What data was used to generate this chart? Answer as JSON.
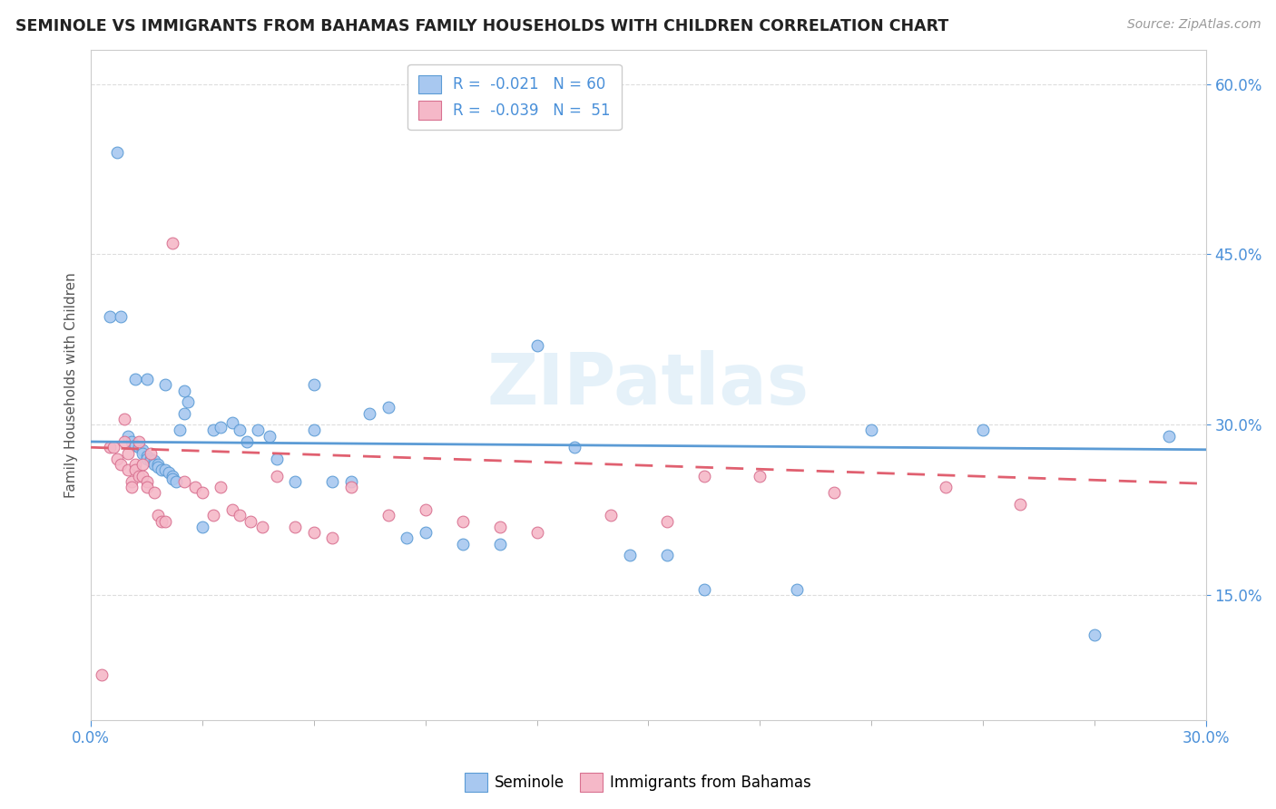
{
  "title": "SEMINOLE VS IMMIGRANTS FROM BAHAMAS FAMILY HOUSEHOLDS WITH CHILDREN CORRELATION CHART",
  "source": "Source: ZipAtlas.com",
  "x_min": 0.0,
  "x_max": 0.3,
  "y_min": 0.04,
  "y_max": 0.63,
  "R_seminole": -0.021,
  "N_seminole": 60,
  "R_bahamas": -0.039,
  "N_bahamas": 51,
  "color_seminole": "#a8c8f0",
  "color_bahamas": "#f5b8c8",
  "color_seminole_line": "#5b9bd5",
  "color_bahamas_line": "#e06070",
  "watermark_text": "ZIPatlas",
  "seminole_x": [
    0.005,
    0.008,
    0.01,
    0.011,
    0.012,
    0.013,
    0.014,
    0.014,
    0.015,
    0.015,
    0.016,
    0.016,
    0.017,
    0.017,
    0.018,
    0.018,
    0.019,
    0.02,
    0.021,
    0.022,
    0.022,
    0.023,
    0.024,
    0.025,
    0.026,
    0.03,
    0.033,
    0.035,
    0.038,
    0.04,
    0.042,
    0.045,
    0.048,
    0.05,
    0.055,
    0.06,
    0.065,
    0.07,
    0.075,
    0.08,
    0.085,
    0.09,
    0.1,
    0.11,
    0.12,
    0.13,
    0.145,
    0.155,
    0.165,
    0.19,
    0.21,
    0.24,
    0.27,
    0.29,
    0.007,
    0.012,
    0.015,
    0.02,
    0.025,
    0.06
  ],
  "seminole_y": [
    0.395,
    0.395,
    0.29,
    0.285,
    0.282,
    0.28,
    0.278,
    0.275,
    0.272,
    0.27,
    0.27,
    0.268,
    0.268,
    0.265,
    0.265,
    0.263,
    0.26,
    0.26,
    0.258,
    0.255,
    0.252,
    0.25,
    0.295,
    0.31,
    0.32,
    0.21,
    0.295,
    0.298,
    0.302,
    0.295,
    0.285,
    0.295,
    0.29,
    0.27,
    0.25,
    0.295,
    0.25,
    0.25,
    0.31,
    0.315,
    0.2,
    0.205,
    0.195,
    0.195,
    0.37,
    0.28,
    0.185,
    0.185,
    0.155,
    0.155,
    0.295,
    0.295,
    0.115,
    0.29,
    0.54,
    0.34,
    0.34,
    0.335,
    0.33,
    0.335
  ],
  "bahamas_x": [
    0.003,
    0.005,
    0.006,
    0.007,
    0.008,
    0.009,
    0.009,
    0.01,
    0.01,
    0.011,
    0.011,
    0.012,
    0.012,
    0.013,
    0.013,
    0.014,
    0.014,
    0.015,
    0.015,
    0.016,
    0.017,
    0.018,
    0.019,
    0.02,
    0.022,
    0.025,
    0.028,
    0.03,
    0.033,
    0.035,
    0.038,
    0.04,
    0.043,
    0.046,
    0.05,
    0.055,
    0.06,
    0.065,
    0.07,
    0.08,
    0.09,
    0.1,
    0.11,
    0.12,
    0.14,
    0.155,
    0.165,
    0.18,
    0.2,
    0.23,
    0.25
  ],
  "bahamas_y": [
    0.08,
    0.28,
    0.28,
    0.27,
    0.265,
    0.285,
    0.305,
    0.275,
    0.26,
    0.25,
    0.245,
    0.265,
    0.26,
    0.255,
    0.285,
    0.265,
    0.255,
    0.25,
    0.245,
    0.275,
    0.24,
    0.22,
    0.215,
    0.215,
    0.46,
    0.25,
    0.245,
    0.24,
    0.22,
    0.245,
    0.225,
    0.22,
    0.215,
    0.21,
    0.255,
    0.21,
    0.205,
    0.2,
    0.245,
    0.22,
    0.225,
    0.215,
    0.21,
    0.205,
    0.22,
    0.215,
    0.255,
    0.255,
    0.24,
    0.245,
    0.23
  ],
  "trend_seminole_start": 0.285,
  "trend_seminole_end": 0.278,
  "trend_bahamas_start": 0.28,
  "trend_bahamas_end": 0.248
}
